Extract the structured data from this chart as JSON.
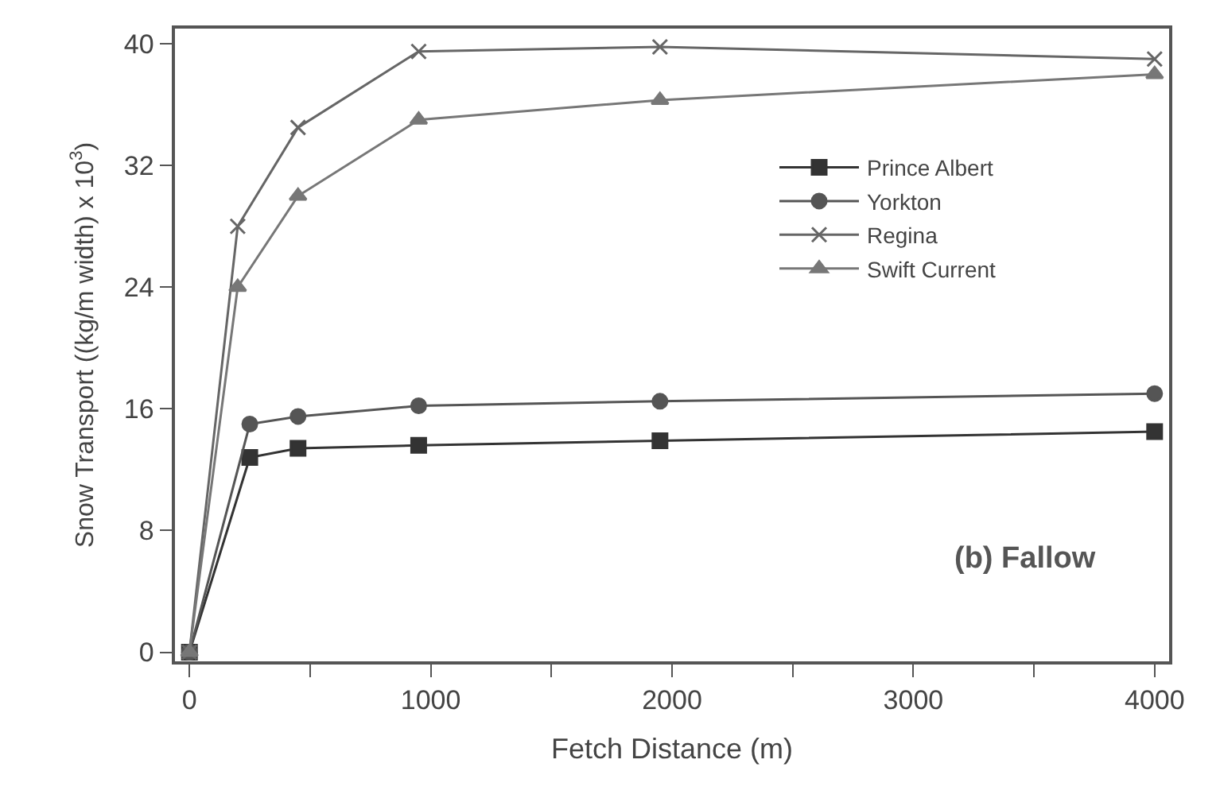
{
  "chart_data": {
    "type": "line",
    "xlabel": "Fetch Distance (m)",
    "ylabel": "Snow Transport ((kg/m width) x 10$^{3}$)",
    "series": [
      {
        "name": "Prince Albert",
        "color": "#333333",
        "marker": "square",
        "x": [
          0,
          250,
          450,
          950,
          1950,
          4000
        ],
        "values": [
          0,
          12.8,
          13.4,
          13.6,
          13.9,
          14.5
        ]
      },
      {
        "name": "Yorkton",
        "color": "#555555",
        "marker": "circle",
        "x": [
          0,
          250,
          450,
          950,
          1950,
          4000
        ],
        "values": [
          0,
          15,
          15.5,
          16.2,
          16.5,
          17
        ]
      },
      {
        "name": "Regina",
        "color": "#666666",
        "marker": "cross",
        "x": [
          0,
          200,
          450,
          950,
          1950,
          4000
        ],
        "values": [
          0,
          28,
          34.5,
          39.5,
          39.8,
          39
        ]
      },
      {
        "name": "Swift Current",
        "color": "#777777",
        "marker": "triangle",
        "x": [
          0,
          200,
          450,
          950,
          1950,
          4000
        ],
        "values": [
          0,
          24,
          30,
          35,
          36.3,
          38
        ]
      }
    ],
    "xlim": [
      -60,
      4060
    ],
    "ylim": [
      -0.6,
      41
    ],
    "xticks": [
      0,
      {
        "value": 500,
        "label": null
      },
      1000,
      {
        "value": 1500,
        "label": null
      },
      2000,
      {
        "value": 2500,
        "label": null
      },
      3000,
      {
        "value": 3500,
        "label": null
      },
      4000
    ],
    "yticks": [
      0,
      8,
      16,
      24,
      32,
      40
    ],
    "annotations": [
      "(b) Fallow"
    ],
    "legend": "top right"
  }
}
